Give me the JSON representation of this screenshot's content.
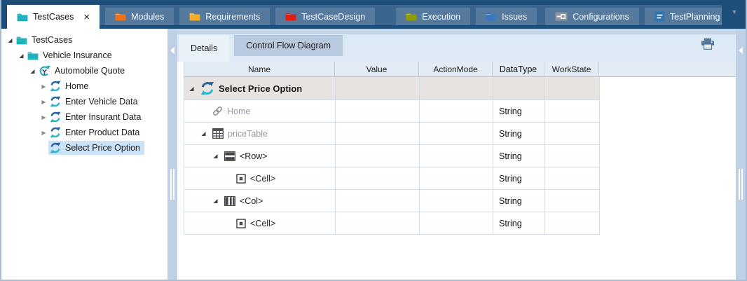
{
  "tabbar": {
    "tabs": [
      {
        "label": "TestCases",
        "icon": "folder-icon",
        "color": "#1fb1bc",
        "active": true
      },
      {
        "label": "Modules",
        "icon": "folder-icon",
        "color": "#ee7219",
        "active": false
      },
      {
        "label": "Requirements",
        "icon": "folder-icon",
        "color": "#f2ae27",
        "active": false
      },
      {
        "label": "TestCaseDesign",
        "icon": "folder-icon",
        "color": "#df1b12",
        "active": false
      },
      {
        "label": "Execution",
        "icon": "folder-icon",
        "color": "#8f9b00",
        "active": false
      },
      {
        "label": "Issues",
        "icon": "folder-icon",
        "color": "#3a78c2",
        "active": false
      },
      {
        "label": "Configurations",
        "icon": "configurations-icon",
        "color": "#8e959c",
        "active": false
      },
      {
        "label": "TestPlanning",
        "icon": "testplanning-icon",
        "color": "#2e75b6",
        "active": false
      }
    ]
  },
  "glyphs": {
    "expanded": "◢",
    "collapsed": "▶",
    "close": "×",
    "overflow": "▼"
  },
  "tree": {
    "items": [
      {
        "label": "TestCases",
        "icon": "folder-icon",
        "color": "#1fb1bc",
        "level": 0,
        "expander": "expanded",
        "selected": false
      },
      {
        "label": "Vehicle Insurance",
        "icon": "folder-icon",
        "color": "#1fb1bc",
        "level": 1,
        "expander": "expanded",
        "selected": false
      },
      {
        "label": "Automobile Quote",
        "icon": "testcase-icon",
        "level": 2,
        "expander": "expanded",
        "selected": false
      },
      {
        "label": "Home",
        "icon": "teststep-icon",
        "level": 3,
        "expander": "collapsed",
        "selected": false
      },
      {
        "label": "Enter Vehicle Data",
        "icon": "teststep-icon",
        "level": 3,
        "expander": "collapsed",
        "selected": false
      },
      {
        "label": "Enter Insurant Data",
        "icon": "teststep-icon",
        "level": 3,
        "expander": "collapsed",
        "selected": false
      },
      {
        "label": "Enter Product Data",
        "icon": "teststep-icon",
        "level": 3,
        "expander": "collapsed",
        "selected": false
      },
      {
        "label": "Select Price Option",
        "icon": "teststep-icon",
        "level": 3,
        "expander": "none",
        "selected": true
      }
    ]
  },
  "details_panel": {
    "tabs": [
      {
        "label": "Details",
        "active": true
      },
      {
        "label": "Control Flow Diagram",
        "active": false
      }
    ]
  },
  "table": {
    "columns": [
      "Name",
      "Value",
      "ActionMode",
      "DataType",
      "WorkState"
    ],
    "rows": [
      {
        "name": "Select Price Option",
        "icon": "teststep-icon",
        "level": 0,
        "expander": "expanded",
        "value": "",
        "action_mode": "",
        "data_type": "",
        "work_state": "",
        "emphasis": true,
        "muted": false
      },
      {
        "name": "Home",
        "icon": "link-icon",
        "level": 1,
        "expander": "none",
        "value": "",
        "action_mode": "",
        "data_type": "String",
        "work_state": "",
        "emphasis": false,
        "muted": true
      },
      {
        "name": "priceTable",
        "icon": "table-icon",
        "level": 1,
        "expander": "expanded",
        "value": "",
        "action_mode": "",
        "data_type": "String",
        "work_state": "",
        "emphasis": false,
        "muted": true
      },
      {
        "name": "<Row>",
        "icon": "row-icon",
        "level": 2,
        "expander": "expanded",
        "value": "",
        "action_mode": "",
        "data_type": "String",
        "work_state": "",
        "emphasis": false,
        "muted": false
      },
      {
        "name": "<Cell>",
        "icon": "cell-icon",
        "level": 3,
        "expander": "none",
        "value": "",
        "action_mode": "",
        "data_type": "String",
        "work_state": "",
        "emphasis": false,
        "muted": false
      },
      {
        "name": "<Col>",
        "icon": "col-icon",
        "level": 2,
        "expander": "expanded",
        "value": "",
        "action_mode": "",
        "data_type": "String",
        "work_state": "",
        "emphasis": false,
        "muted": false
      },
      {
        "name": "<Cell>",
        "icon": "cell-icon",
        "level": 3,
        "expander": "none",
        "value": "",
        "action_mode": "",
        "data_type": "String",
        "work_state": "",
        "emphasis": false,
        "muted": false
      }
    ]
  },
  "colors": {
    "tabbar_dark": "#1d4e79",
    "tabbar_bg": "#3a658f",
    "inactive_tab": "#56799e",
    "selected_tree_item": "#cbe3f8",
    "details_strip": "#dde9f4",
    "inactive_subtab": "#b7cadf",
    "grid_header_bg": "#e3ebf4",
    "selected_row_bg": "#e6e3e0",
    "teststep_blue": "#2b62a0",
    "teststep_teal": "#2cb5c8"
  }
}
